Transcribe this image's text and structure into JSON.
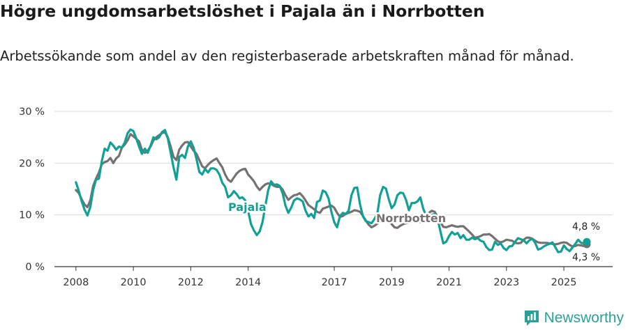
{
  "title": "Högre ungdomsarbetslöshet i Pajala än i Norrbotten",
  "subtitle": "Arbetssökande som andel av den registerbaserade arbetskraften månad för månad.",
  "brand": "Newsworthy",
  "colors": {
    "pajala": "#11a095",
    "norrbotten": "#767171",
    "grid": "#dcdcdc",
    "axis": "#333333",
    "brand": "#2aa198"
  },
  "chart_data": {
    "type": "line",
    "x_range": [
      2007.25,
      2026.7
    ],
    "ylim": [
      0,
      30
    ],
    "yticks": [
      0,
      10,
      20,
      30
    ],
    "ytick_labels": [
      "0 %",
      "10 %",
      "20 %",
      "30 %"
    ],
    "xticks": [
      2008,
      2010,
      2012,
      2014,
      2017,
      2019,
      2021,
      2023,
      2025
    ],
    "xtick_labels": [
      "2008",
      "2010",
      "2012",
      "2014",
      "2017",
      "2019",
      "2021",
      "2023",
      "2025"
    ],
    "grid": true,
    "legend": "inline labels",
    "series": [
      {
        "name": "Pajala",
        "x": [
          2008.0,
          2008.1,
          2008.2,
          2008.3,
          2008.4,
          2008.5,
          2008.6,
          2008.7,
          2008.8,
          2008.9,
          2009.0,
          2009.1,
          2009.2,
          2009.3,
          2009.4,
          2009.5,
          2009.6,
          2009.7,
          2009.8,
          2009.9,
          2010.0,
          2010.1,
          2010.2,
          2010.3,
          2010.4,
          2010.5,
          2010.6,
          2010.7,
          2010.8,
          2010.9,
          2011.0,
          2011.1,
          2011.2,
          2011.3,
          2011.4,
          2011.5,
          2011.6,
          2011.7,
          2011.8,
          2011.9,
          2012.0,
          2012.1,
          2012.2,
          2012.3,
          2012.4,
          2012.5,
          2012.6,
          2012.7,
          2012.8,
          2012.9,
          2013.0,
          2013.1,
          2013.2,
          2013.3,
          2013.4,
          2013.5,
          2013.6,
          2013.7,
          2013.8,
          2013.9,
          2014.0,
          2014.1,
          2014.2,
          2014.3,
          2014.4,
          2014.5,
          2014.6,
          2014.7,
          2014.8,
          2014.9,
          2015.0,
          2015.1,
          2015.2,
          2015.3,
          2015.4,
          2015.5,
          2015.6,
          2015.7,
          2015.8,
          2015.9,
          2016.0,
          2016.1,
          2016.2,
          2016.3,
          2016.4,
          2016.5,
          2016.6,
          2016.7,
          2016.8,
          2016.9,
          2017.0,
          2017.1,
          2017.2,
          2017.3,
          2017.4,
          2017.5,
          2017.6,
          2017.7,
          2017.8,
          2017.9,
          2018.0,
          2018.1,
          2018.2,
          2018.3,
          2018.4,
          2018.5,
          2018.6,
          2018.7,
          2018.8,
          2018.9,
          2019.0,
          2019.1,
          2019.2,
          2019.3,
          2019.4,
          2019.5,
          2019.6,
          2019.7,
          2019.8,
          2019.9,
          2020.0,
          2020.1,
          2020.2,
          2020.3,
          2020.4,
          2020.5,
          2020.6,
          2020.7,
          2020.8,
          2020.9,
          2021.0,
          2021.1,
          2021.2,
          2021.3,
          2021.4,
          2021.5,
          2021.6,
          2021.7,
          2021.8,
          2021.9,
          2022.0,
          2022.1,
          2022.2,
          2022.3,
          2022.4,
          2022.5,
          2022.6,
          2022.7,
          2022.8,
          2022.9,
          2023.0,
          2023.1,
          2023.2,
          2023.3,
          2023.4,
          2023.5,
          2023.6,
          2023.7,
          2023.8,
          2023.9,
          2024.0,
          2024.1,
          2024.2,
          2024.3,
          2024.4,
          2024.5,
          2024.6,
          2024.7,
          2024.8,
          2024.9,
          2025.0,
          2025.1,
          2025.2,
          2025.3,
          2025.4,
          2025.5,
          2025.6,
          2025.7,
          2025.8
        ],
        "values": [
          16.3,
          14.6,
          12.6,
          11.0,
          9.9,
          11.5,
          14.8,
          16.8,
          17.0,
          20.4,
          22.8,
          22.4,
          24.0,
          23.4,
          22.6,
          23.2,
          23.0,
          24.0,
          25.8,
          26.5,
          26.2,
          24.8,
          23.2,
          21.8,
          22.8,
          22.0,
          23.4,
          25.0,
          24.6,
          25.0,
          26.0,
          26.4,
          24.8,
          22.0,
          19.2,
          16.8,
          21.2,
          21.6,
          21.0,
          23.2,
          24.2,
          23.0,
          20.8,
          18.3,
          17.8,
          18.9,
          18.2,
          19.0,
          19.0,
          18.7,
          17.8,
          16.2,
          15.4,
          13.4,
          13.8,
          14.6,
          14.0,
          13.2,
          13.4,
          12.8,
          10.8,
          8.2,
          7.0,
          6.1,
          6.8,
          8.6,
          11.8,
          14.8,
          16.5,
          15.8,
          15.9,
          15.6,
          14.2,
          11.8,
          10.4,
          11.4,
          12.8,
          13.2,
          13.0,
          12.6,
          10.8,
          9.7,
          10.2,
          9.4,
          12.5,
          12.8,
          14.7,
          14.4,
          13.2,
          10.6,
          8.6,
          7.6,
          9.8,
          10.4,
          10.2,
          10.8,
          13.8,
          15.2,
          15.3,
          12.0,
          9.7,
          8.8,
          8.6,
          8.4,
          9.2,
          10.2,
          13.8,
          15.4,
          15.1,
          13.0,
          11.3,
          12.0,
          13.8,
          14.3,
          14.2,
          12.9,
          10.9,
          12.3,
          12.3,
          12.6,
          13.4,
          11.2,
          9.9,
          8.7,
          10.0,
          10.2,
          9.3,
          6.8,
          4.5,
          4.8,
          5.9,
          6.7,
          6.2,
          6.5,
          5.5,
          6.1,
          5.2,
          5.2,
          5.6,
          5.3,
          5.5,
          5.0,
          4.8,
          3.8,
          3.2,
          3.3,
          4.8,
          4.2,
          4.5,
          3.6,
          3.2,
          3.9,
          4.0,
          4.8,
          5.5,
          5.3,
          5.1,
          4.5,
          5.1,
          5.4,
          4.6,
          3.3,
          3.5,
          3.9,
          4.2,
          4.4,
          4.7,
          3.8,
          2.8,
          2.9,
          4.1,
          3.4,
          3.0,
          3.7,
          4.4,
          5.2,
          4.6,
          4.5,
          4.8
        ]
      },
      {
        "name": "Norrbotten",
        "x": [
          2008.0,
          2008.1,
          2008.2,
          2008.3,
          2008.4,
          2008.5,
          2008.6,
          2008.7,
          2008.8,
          2008.9,
          2009.0,
          2009.1,
          2009.2,
          2009.3,
          2009.4,
          2009.5,
          2009.6,
          2009.7,
          2009.8,
          2009.9,
          2010.0,
          2010.1,
          2010.2,
          2010.3,
          2010.4,
          2010.5,
          2010.6,
          2010.7,
          2010.8,
          2010.9,
          2011.0,
          2011.1,
          2011.2,
          2011.3,
          2011.4,
          2011.5,
          2011.6,
          2011.7,
          2011.8,
          2011.9,
          2012.0,
          2012.1,
          2012.2,
          2012.3,
          2012.4,
          2012.5,
          2012.6,
          2012.7,
          2012.8,
          2012.9,
          2013.0,
          2013.1,
          2013.2,
          2013.3,
          2013.4,
          2013.5,
          2013.6,
          2013.7,
          2013.8,
          2013.9,
          2014.0,
          2014.1,
          2014.2,
          2014.3,
          2014.4,
          2014.5,
          2014.6,
          2014.7,
          2014.8,
          2014.9,
          2015.0,
          2015.1,
          2015.2,
          2015.3,
          2015.4,
          2015.5,
          2015.6,
          2015.7,
          2015.8,
          2015.9,
          2016.0,
          2016.1,
          2016.2,
          2016.3,
          2016.4,
          2016.5,
          2016.6,
          2016.7,
          2016.8,
          2016.9,
          2017.0,
          2017.1,
          2017.2,
          2017.3,
          2017.4,
          2017.5,
          2017.6,
          2017.7,
          2017.8,
          2017.9,
          2018.0,
          2018.1,
          2018.2,
          2018.3,
          2018.4,
          2018.5,
          2018.6,
          2018.7,
          2018.8,
          2018.9,
          2019.0,
          2019.1,
          2019.2,
          2019.3,
          2019.4,
          2019.5,
          2019.6,
          2019.7,
          2019.8,
          2019.9,
          2020.0,
          2020.1,
          2020.2,
          2020.3,
          2020.4,
          2020.5,
          2020.6,
          2020.7,
          2020.8,
          2020.9,
          2021.0,
          2021.1,
          2021.2,
          2021.3,
          2021.4,
          2021.5,
          2021.6,
          2021.7,
          2021.8,
          2021.9,
          2022.0,
          2022.1,
          2022.2,
          2022.3,
          2022.4,
          2022.5,
          2022.6,
          2022.7,
          2022.8,
          2022.9,
          2023.0,
          2023.1,
          2023.2,
          2023.3,
          2023.4,
          2023.5,
          2023.6,
          2023.7,
          2023.8,
          2023.9,
          2024.0,
          2024.1,
          2024.2,
          2024.3,
          2024.4,
          2024.5,
          2024.6,
          2024.7,
          2024.8,
          2024.9,
          2025.0,
          2025.1,
          2025.2,
          2025.3,
          2025.4,
          2025.5,
          2025.6,
          2025.7,
          2025.8
        ],
        "values": [
          14.8,
          14.2,
          13.0,
          12.0,
          11.5,
          12.8,
          15.6,
          17.0,
          18.2,
          19.8,
          20.2,
          20.4,
          21.0,
          20.0,
          20.9,
          21.4,
          23.0,
          23.6,
          24.4,
          25.6,
          25.2,
          24.7,
          24.2,
          22.6,
          22.0,
          22.4,
          23.2,
          24.4,
          25.0,
          25.4,
          25.8,
          26.0,
          25.0,
          23.2,
          21.2,
          20.6,
          22.6,
          23.4,
          24.0,
          24.1,
          23.2,
          22.4,
          21.8,
          20.6,
          19.4,
          19.0,
          19.7,
          20.2,
          20.6,
          20.9,
          20.0,
          19.2,
          17.8,
          16.8,
          16.4,
          17.2,
          18.0,
          18.5,
          18.8,
          18.9,
          17.8,
          17.2,
          16.5,
          15.5,
          14.8,
          15.4,
          15.9,
          16.1,
          16.0,
          15.6,
          15.4,
          15.5,
          14.9,
          13.8,
          12.9,
          13.4,
          13.8,
          13.9,
          14.2,
          13.6,
          12.8,
          11.9,
          11.5,
          11.1,
          10.6,
          10.4,
          11.2,
          11.4,
          11.6,
          11.8,
          11.4,
          10.4,
          9.6,
          9.8,
          10.2,
          10.4,
          10.6,
          10.9,
          10.8,
          10.6,
          9.8,
          8.9,
          8.1,
          7.6,
          7.9,
          8.3,
          8.8,
          9.1,
          9.3,
          9.0,
          8.2,
          7.6,
          7.5,
          7.9,
          8.2,
          8.4,
          8.5,
          8.9,
          9.2,
          9.1,
          8.6,
          8.9,
          9.9,
          10.4,
          10.8,
          10.6,
          9.6,
          8.6,
          7.7,
          7.6,
          7.8,
          8.0,
          7.8,
          7.7,
          7.8,
          7.8,
          7.3,
          6.8,
          6.2,
          5.6,
          5.7,
          5.9,
          6.2,
          6.2,
          6.3,
          5.9,
          5.4,
          4.9,
          4.7,
          4.9,
          5.2,
          5.1,
          5.0,
          4.6,
          4.5,
          4.6,
          5.2,
          5.6,
          5.6,
          5.4,
          5.0,
          4.7,
          4.6,
          4.6,
          4.6,
          4.5,
          4.4,
          4.3,
          4.4,
          4.6,
          4.7,
          4.6,
          4.2,
          3.9,
          4.0,
          4.2,
          4.1,
          4.0,
          4.3
        ]
      }
    ],
    "series_labels": [
      "Pajala",
      "Norrbotten"
    ],
    "end_labels": [
      "4,8 %",
      "4,3 %"
    ]
  }
}
